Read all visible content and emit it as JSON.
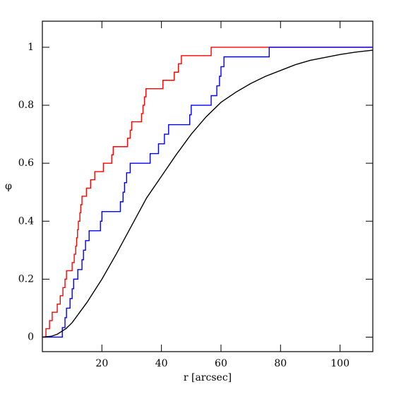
{
  "chart_data": {
    "type": "step",
    "x_label": "r [arcsec]",
    "y_label": "φ",
    "xlim": [
      0,
      111
    ],
    "ylim": [
      -0.05,
      1.09
    ],
    "xticks": [
      20,
      40,
      60,
      80,
      100
    ],
    "yticks": [
      0,
      0.2,
      0.4,
      0.6,
      0.8,
      1
    ],
    "series": [
      {
        "color": "#ff0000",
        "step": true,
        "x": [
          0,
          1.2,
          2.4,
          3.3,
          5,
          6,
          6.9,
          7.6,
          8.1,
          10,
          10.7,
          11.2,
          11.5,
          11.8,
          12.1,
          12.6,
          12.9,
          13.3,
          14.8,
          16.2,
          17.6,
          20.5,
          23.3,
          23.8,
          28.6,
          29.5,
          30,
          33.3,
          33.8,
          34.3,
          34.8,
          40.5,
          44.3,
          45.7,
          46.7,
          56.7,
          111
        ],
        "values": [
          0,
          0.029,
          0.057,
          0.086,
          0.114,
          0.143,
          0.171,
          0.2,
          0.229,
          0.257,
          0.286,
          0.314,
          0.343,
          0.371,
          0.4,
          0.429,
          0.457,
          0.486,
          0.514,
          0.543,
          0.571,
          0.6,
          0.629,
          0.657,
          0.686,
          0.714,
          0.743,
          0.771,
          0.8,
          0.829,
          0.857,
          0.886,
          0.914,
          0.943,
          0.971,
          1,
          1
        ]
      },
      {
        "color": "#0000ff",
        "step": true,
        "x": [
          0,
          6.7,
          7.6,
          8.1,
          9.3,
          10,
          10.5,
          11.9,
          13.3,
          13.8,
          14.5,
          15.7,
          19.5,
          20,
          26.2,
          27.1,
          27.6,
          28.3,
          29.5,
          36.2,
          39,
          41,
          42.4,
          49.5,
          50,
          56.7,
          58.6,
          59.5,
          60,
          61,
          76.2,
          111
        ],
        "values": [
          0,
          0.033,
          0.067,
          0.1,
          0.133,
          0.167,
          0.2,
          0.233,
          0.267,
          0.3,
          0.333,
          0.367,
          0.4,
          0.433,
          0.467,
          0.5,
          0.533,
          0.567,
          0.6,
          0.633,
          0.667,
          0.7,
          0.733,
          0.767,
          0.8,
          0.833,
          0.867,
          0.9,
          0.933,
          0.967,
          1,
          1
        ]
      },
      {
        "color": "#000000",
        "step": false,
        "x": [
          0,
          3,
          5,
          8,
          10,
          15,
          20,
          25,
          30,
          35,
          40,
          45,
          50,
          55,
          60,
          65,
          70,
          75,
          80,
          85,
          90,
          95,
          100,
          105,
          111
        ],
        "values": [
          0,
          0.003,
          0.01,
          0.03,
          0.05,
          0.12,
          0.2,
          0.29,
          0.385,
          0.48,
          0.555,
          0.63,
          0.7,
          0.76,
          0.81,
          0.845,
          0.875,
          0.9,
          0.92,
          0.94,
          0.955,
          0.965,
          0.975,
          0.983,
          0.99
        ]
      }
    ]
  }
}
